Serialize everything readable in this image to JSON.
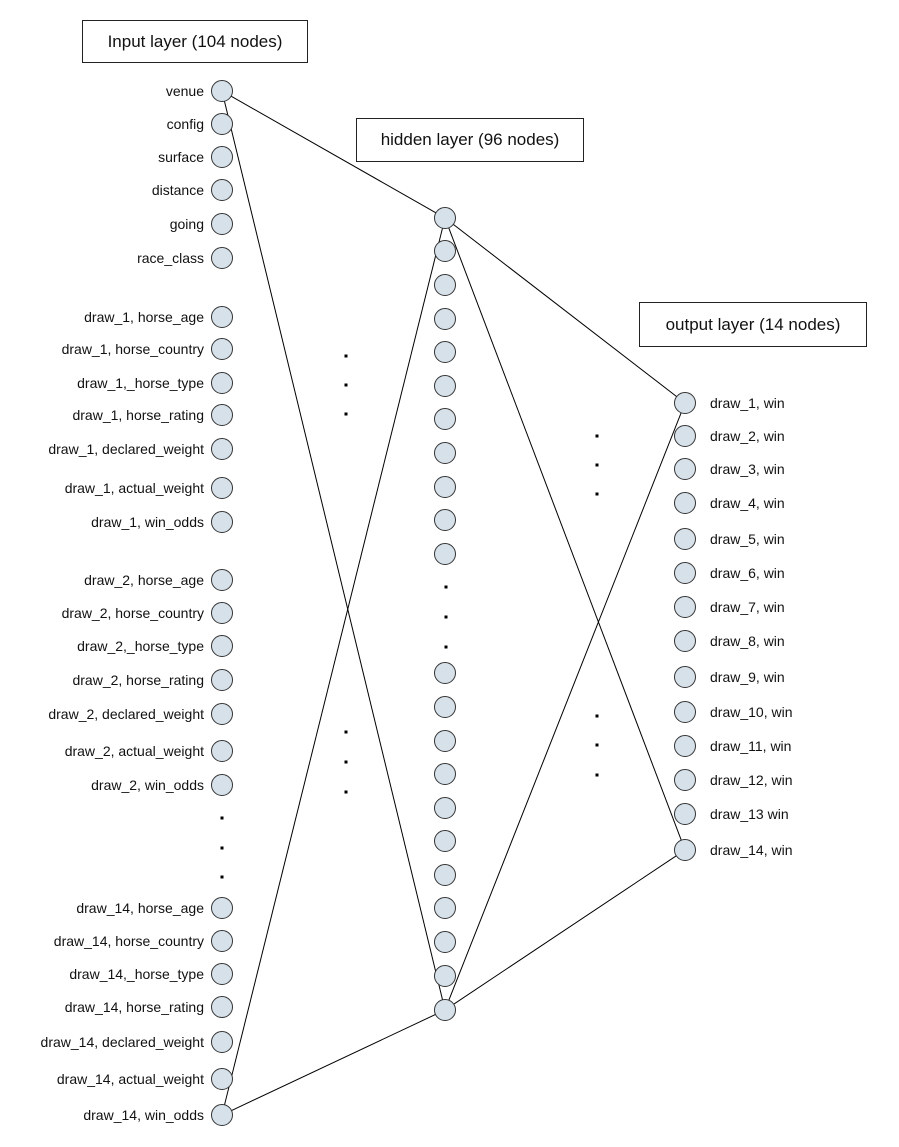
{
  "titles": {
    "input": "Input layer (104 nodes)",
    "hidden": "hidden layer (96 nodes)",
    "output": "output layer (14 nodes)"
  },
  "input_labels": [
    "venue",
    "config",
    "surface",
    "distance",
    "going",
    "race_class",
    "draw_1, horse_age",
    "draw_1, horse_country",
    "draw_1,_horse_type",
    "draw_1, horse_rating",
    "draw_1, declared_weight",
    "draw_1, actual_weight",
    "draw_1, win_odds",
    "draw_2, horse_age",
    "draw_2, horse_country",
    "draw_2,_horse_type",
    "draw_2, horse_rating",
    "draw_2, declared_weight",
    "draw_2, actual_weight",
    "draw_2, win_odds",
    "draw_14, horse_age",
    "draw_14, horse_country",
    "draw_14,_horse_type",
    "draw_14, horse_rating",
    "draw_14, declared_weight",
    "draw_14, actual_weight",
    "draw_14, win_odds"
  ],
  "output_labels": [
    "draw_1, win",
    "draw_2, win",
    "draw_3, win",
    "draw_4, win",
    "draw_5, win",
    "draw_6, win",
    "draw_7, win",
    "draw_8, win",
    "draw_9, win",
    "draw_10, win",
    "draw_11, win",
    "draw_12, win",
    "draw_13 win",
    "draw_14, win"
  ],
  "hidden_nodes_drawn": 26,
  "colors": {
    "node_fill": "#d6e1ea",
    "node_stroke": "#333333",
    "edge": "#000000"
  }
}
